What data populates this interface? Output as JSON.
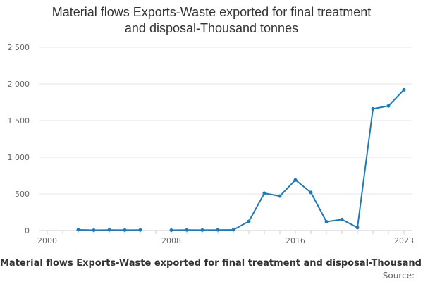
{
  "chart_data": {
    "type": "line",
    "title": "Material flows Exports-Waste exported for final treatment\nand disposal-Thousand tonnes",
    "xlabel": "Material flows Exports-Waste exported for final treatment and disposal-Thousand tonnes",
    "ylabel": "",
    "source_label": "Source:",
    "xlim": [
      2000,
      2023
    ],
    "ylim": [
      0,
      2500
    ],
    "x_ticks": [
      2000,
      2008,
      2016,
      2023
    ],
    "y_ticks": [
      0,
      500,
      1000,
      1500,
      2000,
      2500
    ],
    "y_tick_labels": [
      "0",
      "500",
      "1 000",
      "1 500",
      "2 000",
      "2 500"
    ],
    "grid": true,
    "color": "#1f7ab5",
    "segments": [
      {
        "x": [
          2002,
          2003,
          2004,
          2005,
          2006
        ],
        "y": [
          10,
          5,
          8,
          6,
          7
        ]
      },
      {
        "x": [
          2008,
          2009,
          2010,
          2011,
          2012,
          2013,
          2014,
          2015,
          2016,
          2017,
          2018,
          2019,
          2020,
          2021,
          2022,
          2023
        ],
        "y": [
          5,
          7,
          6,
          8,
          10,
          125,
          510,
          470,
          690,
          520,
          120,
          150,
          40,
          1660,
          1700,
          1920
        ]
      }
    ]
  }
}
